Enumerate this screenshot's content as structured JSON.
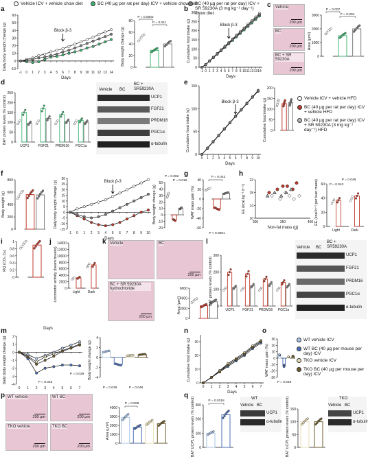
{
  "panels": {
    "a": "a",
    "b": "b",
    "c": "c",
    "d": "d",
    "e": "e",
    "f": "f",
    "g": "g",
    "h": "h",
    "i": "i",
    "j": "j",
    "k": "k",
    "l": "l",
    "m": "m",
    "n": "n",
    "o": "o",
    "p": "p",
    "q": "q"
  },
  "legend_top": {
    "vehicle": "Vehicle ICV + vehicle chow diet",
    "bc": "BC (40 µg per rat per day) ICV + vehicle chow diet",
    "bc_sr": "BC (40 µg per rat per day) ICV + SR 59230A (3 mg kg⁻¹ day⁻¹) chow diet"
  },
  "legend_e": {
    "vehicle": "Vehicle ICV + vehicle HFD",
    "bc": "BC (40 µg per rat per day) ICV + vehicle HFD",
    "bc_sr": "BC (40 µg per rat per day) ICV + SR 59230A (3 mg kg⁻¹ day⁻¹) HFD"
  },
  "legend_o": {
    "wt_vehicle": "WT vehicle ICV",
    "wt_bc": "WT BC (40 µg per mouse per day) ICV",
    "tko_vehicle": "TKO vehicle ICV",
    "tko_bc": "TKO BC (40 µg per mouse per day) ICV"
  },
  "colors": {
    "vehicle": "#ffffff",
    "bc": "#3cb371",
    "bc_sr": "#7a7a7a",
    "bc_red": "#c0392b",
    "tko": "#c9b88a",
    "wt_blue": "#4a6fb5",
    "wt_lightblue": "#a9c3e8"
  },
  "axis": {
    "daily_bw_change": "Daily body weight change (g)",
    "bw_change": "Body weight change (g)",
    "cum_food": "Cumulative food intake (g)",
    "area": "Area (µm²)",
    "bat_protein": "BAT protein levels (% control)",
    "body_weight": "Body weight (g)",
    "wat_gain": "WAT mass gain (%)",
    "ee": "EE (kcal kg⁻¹ h⁻¹)",
    "nonfat": "Non-fat mass (g)",
    "ee_lean": "EE (kcal h⁻¹ per lean mass)",
    "rq": "RQ (CO₂ O₂)",
    "locomotor": "Locomotor activity (beam breaks)",
    "days": "Days",
    "bat_ucp1": "BAT UCP1 protein levels (% control)"
  },
  "annotations": {
    "block": "Block β-3",
    "a_p1": "P = 0.0002",
    "a_p2": "P = 0.011",
    "c_p1": "P = 0.007",
    "c_p2": "P = 0.004",
    "f_p1": "P = 0.002",
    "f_p2": "P = 0.016",
    "g_p1": "P = 0.042",
    "g_p2": "P < 0.0001",
    "h_p1": "P = 0.049",
    "h_p2": "P = 0.043",
    "m_p1": "P = 0.043",
    "m_p2": "P = 0.029",
    "m_p3": "P = 0.029",
    "m_p4": "P = 0.046",
    "o_p": "P = 0.045",
    "p_p": "P = 0.008",
    "q_p": "P = 0.0318",
    "light": "Light",
    "dark": "Dark"
  },
  "micro_captions": {
    "vehicle": "Vehicle",
    "bc": "BC",
    "bc_sr": "BC + SR 59230A",
    "bc_sr_hcl": "BC + SR 59230A hydrochloride",
    "wt_vehicle": "WT vehicle",
    "wt_bc": "WT BC",
    "tko_vehicle": "TKO vehicle",
    "tko_bc": "TKO BC",
    "scale": "200 µm"
  },
  "blots": {
    "cols_d": [
      "Vehicle",
      "BC",
      "BC + SR59230A"
    ],
    "rows_d": [
      "UCP1",
      "FGF21",
      "PRDM16",
      "PGC1α",
      "α-tubulin"
    ],
    "cols_l": [
      "Vehicle",
      "BC",
      "BC + SR59230A"
    ],
    "rows_l": [
      "UCP1",
      "FGF21",
      "PRDM16",
      "PGC1α",
      "α-tubulin"
    ],
    "wt": "WT",
    "tko": "TKO",
    "vehicle": "Vehicle",
    "bc": "BC",
    "rows_q": [
      "UCP1",
      "α-tubulin"
    ]
  },
  "chart_data": [
    {
      "type": "line",
      "panel": "a",
      "x": [
        -1,
        0,
        1,
        2,
        3,
        4,
        5,
        6,
        7,
        8,
        9,
        10,
        11,
        12,
        13,
        14
      ],
      "series": [
        {
          "name": "Vehicle",
          "values": [
            0,
            2,
            4,
            7,
            9,
            12,
            14,
            16,
            19,
            22,
            25,
            28,
            31,
            35,
            38,
            41
          ]
        },
        {
          "name": "BC",
          "values": [
            0,
            -1,
            -2,
            -1,
            2,
            5,
            6,
            8,
            10,
            12,
            14,
            17,
            19,
            22,
            25,
            28
          ]
        },
        {
          "name": "BC + SR 59230A",
          "values": [
            0,
            1,
            2,
            4,
            5,
            7,
            9,
            12,
            14,
            17,
            20,
            23,
            26,
            29,
            32,
            35
          ]
        }
      ],
      "ylim": [
        -10,
        60
      ]
    },
    {
      "type": "bar",
      "panel": "a2",
      "categories": [
        "Vehicle",
        "BC",
        "BC + SR 59230A"
      ],
      "values": [
        50,
        29,
        40
      ],
      "ylim": [
        0,
        80
      ]
    },
    {
      "type": "line",
      "panel": "b",
      "x": [
        -1,
        0,
        1,
        2,
        3,
        4,
        5,
        6,
        7,
        8,
        9,
        10,
        11,
        12,
        13,
        14
      ],
      "series": [
        {
          "name": "Vehicle",
          "values": [
            0,
            15,
            35,
            55,
            75,
            95,
            115,
            135,
            155,
            175,
            195,
            215,
            235,
            255,
            275,
            295
          ]
        },
        {
          "name": "BC",
          "values": [
            0,
            14,
            33,
            52,
            71,
            90,
            109,
            128,
            147,
            166,
            185,
            204,
            223,
            242,
            261,
            280
          ]
        },
        {
          "name": "BC + SR 59230A",
          "values": [
            0,
            15,
            34,
            54,
            73,
            93,
            112,
            132,
            151,
            171,
            190,
            210,
            229,
            249,
            268,
            288
          ]
        }
      ],
      "ylim": [
        0,
        300
      ]
    },
    {
      "type": "bar",
      "panel": "c",
      "categories": [
        "Vehicle",
        "BC",
        "BC + SR 59230A"
      ],
      "values": [
        1800,
        1500,
        2000
      ],
      "ylim": [
        0,
        3000
      ]
    },
    {
      "type": "bar",
      "panel": "d",
      "categories": [
        "UCP1",
        "FGF21",
        "PRDM16",
        "PGC1α"
      ],
      "series": [
        {
          "name": "Vehicle",
          "values": [
            100,
            100,
            100,
            100
          ]
        },
        {
          "name": "BC",
          "values": [
            150,
            170,
            140,
            110
          ]
        },
        {
          "name": "BC + SR 59230A",
          "values": [
            95,
            120,
            105,
            100
          ]
        }
      ],
      "ylim": [
        0,
        250
      ]
    },
    {
      "type": "line",
      "panel": "e",
      "x": [
        0,
        1,
        2,
        3,
        4,
        5,
        6,
        7,
        8,
        9,
        10
      ],
      "series": [
        {
          "name": "Vehicle",
          "values": [
            0,
            14,
            28,
            42,
            56,
            70,
            84,
            98,
            112,
            126,
            140
          ]
        },
        {
          "name": "BC",
          "values": [
            0,
            13,
            27,
            41,
            55,
            69,
            83,
            97,
            111,
            125,
            138
          ]
        },
        {
          "name": "BC + SR 59230A",
          "values": [
            0,
            14,
            28,
            42,
            56,
            70,
            83,
            97,
            111,
            125,
            139
          ]
        }
      ],
      "ylim": [
        0,
        150
      ]
    },
    {
      "type": "bar",
      "panel": "e2",
      "categories": [
        "Vehicle",
        "BC",
        "BC + SR 59230A"
      ],
      "values": [
        128,
        126,
        130
      ],
      "ylim": [
        0,
        200
      ]
    },
    {
      "type": "bar",
      "panel": "f1",
      "categories": [
        "Vehicle",
        "BC",
        "BC + SR 59230A"
      ],
      "values": [
        550,
        560,
        555
      ],
      "ylim": [
        0,
        800
      ]
    },
    {
      "type": "line",
      "panel": "f2",
      "x": [
        -1,
        0,
        1,
        2,
        3,
        4,
        5,
        6,
        7,
        8,
        9,
        10
      ],
      "series": [
        {
          "name": "Vehicle",
          "values": [
            0,
            3,
            5,
            7,
            9,
            11,
            14,
            17,
            20,
            23,
            26,
            29
          ]
        },
        {
          "name": "BC",
          "values": [
            0,
            -3,
            -6,
            -9,
            -11,
            -12,
            -11,
            -9,
            -6,
            -3,
            0,
            2
          ]
        },
        {
          "name": "BC + SR 59230A",
          "values": [
            0,
            -2,
            -4,
            -5,
            -4,
            -2,
            1,
            4,
            7,
            10,
            13,
            16
          ]
        }
      ],
      "ylim": [
        -15,
        30
      ]
    },
    {
      "type": "bar",
      "panel": "f3",
      "categories": [
        "Vehicle",
        "BC",
        "BC + SR 59230A"
      ],
      "values": [
        30,
        -8,
        10
      ],
      "ylim": [
        -20,
        50
      ]
    },
    {
      "type": "bar",
      "panel": "g",
      "categories": [
        "Vehicle",
        "BC",
        "BC + SR 59230A"
      ],
      "values": [
        20,
        -20,
        12
      ],
      "ylim": [
        -60,
        40
      ]
    },
    {
      "type": "scatter",
      "panel": "h",
      "series": [
        {
          "name": "Vehicle",
          "x": [
            330,
            345,
            355,
            362,
            370,
            380
          ],
          "y": [
            17,
            16,
            18,
            17,
            16,
            17
          ]
        },
        {
          "name": "BC",
          "x": [
            325,
            340,
            350,
            358,
            368,
            375
          ],
          "y": [
            18,
            19,
            20,
            20,
            19,
            21
          ]
        },
        {
          "name": "BC + SR 59230A",
          "x": [
            322,
            335,
            347,
            356,
            365
          ],
          "y": [
            17,
            18,
            17,
            18,
            19
          ]
        }
      ],
      "xlim": [
        300,
        400
      ],
      "ylim": [
        10,
        22
      ]
    },
    {
      "type": "bar",
      "panel": "h2",
      "categories": [
        "Light",
        "Dark"
      ],
      "series": [
        {
          "name": "Vehicle",
          "values": [
            35,
            39
          ]
        },
        {
          "name": "BC",
          "values": [
            37,
            43
          ]
        }
      ],
      "ylim": [
        0,
        60
      ]
    },
    {
      "type": "bar",
      "panel": "i",
      "categories": [
        "Vehicle",
        "BC"
      ],
      "values": [
        0.9,
        0.9
      ],
      "ylim": [
        0,
        1.0
      ]
    },
    {
      "type": "bar",
      "panel": "j",
      "categories": [
        "Light",
        "Dark"
      ],
      "series": [
        {
          "name": "Vehicle",
          "values": [
            3000,
            7000
          ]
        },
        {
          "name": "BC",
          "values": [
            3200,
            7200
          ]
        }
      ],
      "ylim": [
        0,
        14000
      ]
    },
    {
      "type": "bar",
      "panel": "k",
      "categories": [
        "Vehicle",
        "BC",
        "BC + SR 59230A"
      ],
      "values": [
        3500,
        2500,
        3300
      ],
      "ylim": [
        0,
        6000
      ]
    },
    {
      "type": "bar",
      "panel": "l",
      "categories": [
        "UCP1",
        "FGF21",
        "PRDM16",
        "PGC1α"
      ],
      "series": [
        {
          "name": "Vehicle",
          "values": [
            100,
            100,
            100,
            100
          ]
        },
        {
          "name": "BC",
          "values": [
            200,
            190,
            160,
            140
          ]
        },
        {
          "name": "BC + SR 59230A",
          "values": [
            110,
            120,
            130,
            120
          ]
        }
      ],
      "ylim": [
        0,
        300
      ]
    },
    {
      "type": "line",
      "panel": "m",
      "x": [
        0,
        1,
        2,
        3,
        4,
        5,
        6,
        7
      ],
      "series": [
        {
          "name": "WT vehicle ICV",
          "values": [
            0,
            -0.3,
            -0.8,
            -0.4,
            0,
            0.5,
            0.9,
            1.3
          ]
        },
        {
          "name": "WT BC",
          "values": [
            0,
            -0.8,
            -2.6,
            -2.0,
            -1.8,
            -1.6,
            -1.6,
            -1.7
          ]
        },
        {
          "name": "TKO vehicle ICV",
          "values": [
            0,
            -0.5,
            -1.2,
            -0.6,
            -0.2,
            0.2,
            0.6,
            1.0
          ]
        },
        {
          "name": "TKO BC",
          "values": [
            0,
            -0.6,
            -1.5,
            -1.0,
            -0.5,
            0.1,
            0.5,
            0.9
          ]
        }
      ],
      "ylim": [
        -4,
        2
      ]
    },
    {
      "type": "bar",
      "panel": "m2",
      "categories": [
        "WT vehicle ICV",
        "WT BC",
        "TKO vehicle ICV",
        "TKO BC"
      ],
      "values": [
        1.2,
        -1.4,
        0.4,
        0.6
      ],
      "ylim": [
        -4,
        4
      ]
    },
    {
      "type": "line",
      "panel": "n",
      "x": [
        0,
        1,
        2,
        3,
        4,
        5,
        6,
        7
      ],
      "series": [
        {
          "name": "WT vehicle ICV",
          "values": [
            0,
            4,
            9,
            13,
            17,
            21,
            26,
            30
          ]
        },
        {
          "name": "WT BC",
          "values": [
            0,
            4,
            8,
            12,
            16,
            20,
            25,
            29
          ]
        },
        {
          "name": "TKO vehicle ICV",
          "values": [
            0,
            4,
            9,
            14,
            18,
            22,
            27,
            31
          ]
        },
        {
          "name": "TKO BC",
          "values": [
            0,
            4,
            8,
            13,
            17,
            21,
            26,
            30
          ]
        }
      ],
      "ylim": [
        0,
        35
      ]
    },
    {
      "type": "bar",
      "panel": "o",
      "categories": [
        "WT vehicle ICV",
        "WT BC",
        "TKO vehicle ICV",
        "TKO BC"
      ],
      "values": [
        5,
        -12,
        2,
        3
      ],
      "ylim": [
        -30,
        30
      ]
    },
    {
      "type": "bar",
      "panel": "p",
      "categories": [
        "WT vehicle ICV",
        "WT BC",
        "TKO vehicle ICV",
        "TKO BC"
      ],
      "values": [
        2900,
        1800,
        2300,
        2200
      ],
      "ylim": [
        0,
        4000
      ]
    },
    {
      "type": "bar",
      "panel": "q1",
      "categories": [
        "Vehicle",
        "BC"
      ],
      "values": [
        100,
        230
      ],
      "ylim": [
        0,
        300
      ]
    },
    {
      "type": "bar",
      "panel": "q2",
      "categories": [
        "Vehicle",
        "BC"
      ],
      "values": [
        100,
        100
      ],
      "ylim": [
        0,
        150
      ]
    }
  ]
}
